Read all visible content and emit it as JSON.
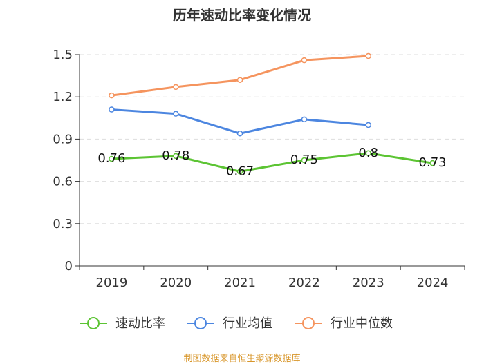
{
  "chart_data": {
    "type": "line",
    "title": "历年速动比率变化情况",
    "categories": [
      "2019",
      "2020",
      "2021",
      "2022",
      "2023",
      "2024"
    ],
    "ylim": [
      0,
      1.5
    ],
    "yticks": [
      "0",
      "0.3",
      "0.6",
      "0.9",
      "1.2",
      "1.5"
    ],
    "ytick_values": [
      0,
      0.3,
      0.6,
      0.9,
      1.2,
      1.5
    ],
    "grid": true,
    "legend_position": "bottom",
    "series": [
      {
        "name": "速动比率",
        "color": "#5cc433",
        "values": [
          0.76,
          0.78,
          0.67,
          0.75,
          0.8,
          0.73
        ],
        "labels": [
          "0.76",
          "0.78",
          "0.67",
          "0.75",
          "0.8",
          "0.73"
        ],
        "show_labels": true
      },
      {
        "name": "行业均值",
        "color": "#4c86e0",
        "values": [
          1.11,
          1.08,
          0.94,
          1.04,
          1.0,
          null
        ],
        "show_labels": false
      },
      {
        "name": "行业中位数",
        "color": "#f5945e",
        "values": [
          1.21,
          1.27,
          1.32,
          1.46,
          1.49,
          null
        ],
        "show_labels": false
      }
    ]
  },
  "source": {
    "text": "制图数据来自恒生聚源数据库",
    "color": "#d8962a"
  }
}
